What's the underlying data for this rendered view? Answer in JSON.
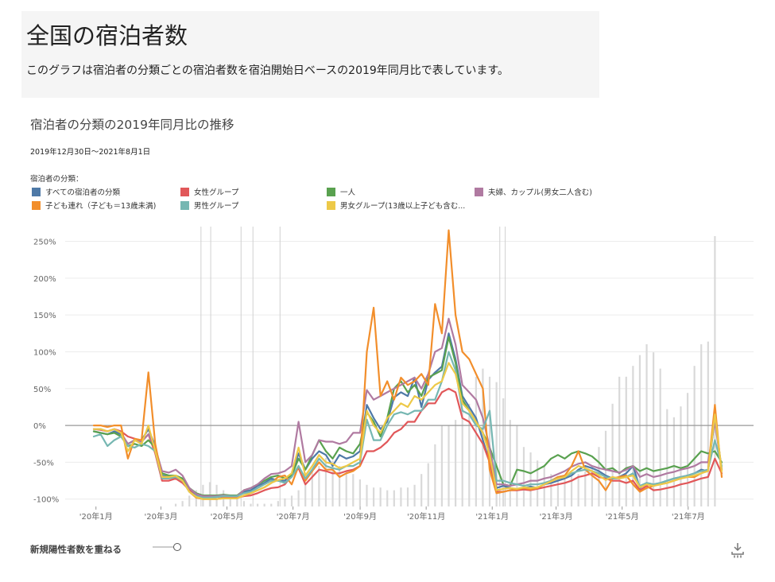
{
  "header": {
    "title": "全国の宿泊者数",
    "description": "このグラフは宿泊者の分類ごとの宿泊者数を宿泊開始日ベースの2019年同月比で表しています。"
  },
  "chart_header": {
    "title": "宿泊者の分類の2019年同月比の推移",
    "date_range": "2019年12月30日～2021年8月1日",
    "legend_title": "宿泊者の分類："
  },
  "legend": [
    {
      "label": "すべての宿泊者の分類",
      "color": "#4e79a7"
    },
    {
      "label": "女性グループ",
      "color": "#e15759"
    },
    {
      "label": "一人",
      "color": "#59a14f"
    },
    {
      "label": "夫婦、カップル(男女二人含む)",
      "color": "#b07aa1"
    },
    {
      "label": "子ども連れ（子ども＝13歳未満)",
      "color": "#f28e2b"
    },
    {
      "label": "男性グループ",
      "color": "#76b7b2"
    },
    {
      "label": "男女グループ(13歳以上子ども含む...",
      "color": "#edc948"
    }
  ],
  "controls": {
    "overlay_label": "新規陽性者数を重ねる",
    "overlay_toggle_on": true,
    "download_icon": "download-icon"
  },
  "chart_data": {
    "type": "line",
    "x_axis": {
      "unit": "week",
      "start": "2019-12-30",
      "end": "2021-08-01",
      "tick_labels": [
        "'20年1月",
        "'20年3月",
        "'20年5月",
        "'20年7月",
        "'20年9月",
        "'20年11月",
        "'21年1月",
        "'21年3月",
        "'21年5月",
        "'21年7月"
      ]
    },
    "y_axis": {
      "ylim": [
        -110,
        270
      ],
      "ticks": [
        -100,
        -50,
        0,
        50,
        100,
        150,
        200,
        250
      ],
      "tick_labels": [
        "-100%",
        "-50%",
        "0%",
        "50%",
        "100%",
        "150%",
        "200%",
        "250%"
      ],
      "zero_line": true
    },
    "overlay": {
      "name": "新規陽性者数",
      "type": "bar",
      "color": "#d9d9d9",
      "note": "relative weekly new cases, background bars (unitless, scale 0-1)",
      "values": [
        0.0,
        0.0,
        0.0,
        0.0,
        0.0,
        0.0,
        0.0,
        0.0,
        0.0,
        0.0,
        0.0,
        0.0,
        0.01,
        0.02,
        0.04,
        0.06,
        0.08,
        0.09,
        0.08,
        0.06,
        0.04,
        0.03,
        0.02,
        0.01,
        0.01,
        0.01,
        0.01,
        0.02,
        0.03,
        0.04,
        0.06,
        0.08,
        0.13,
        0.15,
        0.18,
        0.17,
        0.15,
        0.13,
        0.12,
        0.1,
        0.08,
        0.07,
        0.07,
        0.06,
        0.06,
        0.07,
        0.07,
        0.08,
        0.12,
        0.16,
        0.23,
        0.3,
        0.3,
        0.32,
        0.36,
        0.38,
        0.48,
        0.51,
        0.48,
        0.46,
        0.4,
        0.32,
        0.3,
        0.22,
        0.2,
        0.17,
        0.15,
        0.12,
        0.1,
        0.1,
        0.11,
        0.12,
        0.13,
        0.15,
        0.22,
        0.28,
        0.38,
        0.48,
        0.48,
        0.52,
        0.56,
        0.6,
        0.57,
        0.51,
        0.36,
        0.33,
        0.37,
        0.42,
        0.52,
        0.6,
        0.61,
        1.0
      ]
    },
    "vertical_markers": [
      "2020-04-07",
      "2020-04-16",
      "2020-05-14",
      "2020-05-25",
      "2020-06-19",
      "2021-01-08",
      "2021-01-13"
    ],
    "series": [
      {
        "name": "すべての宿泊者の分類",
        "color": "#4e79a7",
        "values": [
          -8,
          -10,
          -12,
          -8,
          -12,
          -25,
          -20,
          -20,
          -5,
          -28,
          -68,
          -70,
          -68,
          -75,
          -88,
          -95,
          -98,
          -98,
          -97,
          -96,
          -96,
          -96,
          -90,
          -88,
          -82,
          -78,
          -72,
          -75,
          -75,
          -65,
          -38,
          -60,
          -45,
          -35,
          -40,
          -55,
          -40,
          -45,
          -42,
          -35,
          28,
          10,
          -5,
          5,
          38,
          45,
          40,
          65,
          25,
          62,
          72,
          80,
          125,
          90,
          40,
          25,
          10,
          -20,
          -50,
          -85,
          -82,
          -85,
          -87,
          -85,
          -83,
          -85,
          -80,
          -78,
          -75,
          -72,
          -68,
          -60,
          -55,
          -58,
          -62,
          -68,
          -72,
          -70,
          -65,
          -55,
          -85,
          -78,
          -80,
          -78,
          -75,
          -72,
          -70,
          -68,
          -65,
          -60,
          -62,
          10,
          -60
        ]
      },
      {
        "name": "女性グループ",
        "color": "#e15759",
        "values": [
          -5,
          -6,
          -8,
          -5,
          -8,
          -15,
          -18,
          -22,
          -12,
          -38,
          -75,
          -75,
          -72,
          -78,
          -88,
          -97,
          -100,
          -100,
          -100,
          -98,
          -98,
          -98,
          -96,
          -95,
          -92,
          -88,
          -85,
          -84,
          -80,
          -68,
          -58,
          -80,
          -70,
          -60,
          -62,
          -65,
          -65,
          -62,
          -60,
          -55,
          -35,
          -35,
          -30,
          -22,
          -10,
          -5,
          5,
          5,
          20,
          30,
          30,
          45,
          50,
          45,
          10,
          5,
          -10,
          -25,
          -50,
          -90,
          -90,
          -88,
          -88,
          -87,
          -88,
          -86,
          -84,
          -82,
          -80,
          -78,
          -75,
          -70,
          -68,
          -65,
          -70,
          -72,
          -75,
          -75,
          -78,
          -75,
          -88,
          -82,
          -88,
          -87,
          -85,
          -83,
          -80,
          -78,
          -75,
          -72,
          -70,
          -45,
          -65
        ]
      },
      {
        "name": "一人",
        "color": "#59a14f",
        "values": [
          -8,
          -10,
          -12,
          -10,
          -15,
          -28,
          -25,
          -28,
          -20,
          -30,
          -65,
          -68,
          -68,
          -72,
          -85,
          -92,
          -95,
          -95,
          -95,
          -94,
          -95,
          -95,
          -88,
          -85,
          -80,
          -75,
          -70,
          -68,
          -72,
          -68,
          -45,
          -60,
          -40,
          -20,
          -35,
          -45,
          -30,
          -35,
          -38,
          -25,
          18,
          5,
          -15,
          10,
          50,
          60,
          45,
          55,
          40,
          65,
          70,
          75,
          120,
          85,
          35,
          20,
          5,
          -10,
          -30,
          -55,
          -80,
          -82,
          -60,
          -62,
          -65,
          -60,
          -55,
          -45,
          -40,
          -45,
          -38,
          -35,
          -38,
          -42,
          -50,
          -60,
          -58,
          -65,
          -58,
          -55,
          -62,
          -58,
          -62,
          -60,
          -58,
          -55,
          -58,
          -55,
          -45,
          -35,
          -38,
          -35,
          -50
        ]
      },
      {
        "name": "夫婦、カップル(男女二人含む)",
        "color": "#b07aa1",
        "values": [
          -5,
          -5,
          -8,
          -5,
          -10,
          -25,
          -20,
          -22,
          -12,
          -30,
          -62,
          -64,
          -60,
          -68,
          -85,
          -93,
          -96,
          -96,
          -96,
          -95,
          -96,
          -96,
          -88,
          -85,
          -80,
          -72,
          -66,
          -65,
          -62,
          -55,
          5,
          -50,
          -40,
          -20,
          -22,
          -22,
          -25,
          -22,
          -10,
          -10,
          48,
          35,
          40,
          45,
          50,
          55,
          60,
          65,
          50,
          70,
          100,
          105,
          145,
          110,
          55,
          45,
          35,
          10,
          -30,
          -80,
          -80,
          -82,
          -80,
          -78,
          -75,
          -75,
          -72,
          -70,
          -66,
          -62,
          -56,
          -52,
          -50,
          -55,
          -58,
          -60,
          -62,
          -64,
          -60,
          -55,
          -70,
          -66,
          -70,
          -68,
          -65,
          -63,
          -60,
          -58,
          -55,
          -50,
          -50,
          5,
          -60
        ]
      },
      {
        "name": "子ども連れ（子ども＝13歳未満)",
        "color": "#f28e2b",
        "values": [
          0,
          0,
          -2,
          0,
          0,
          -45,
          -18,
          -20,
          72,
          -25,
          -72,
          -72,
          -70,
          -75,
          -90,
          -98,
          -100,
          -100,
          -100,
          -99,
          -99,
          -99,
          -95,
          -92,
          -88,
          -84,
          -78,
          -70,
          -68,
          -80,
          -55,
          -75,
          -62,
          -50,
          -60,
          -60,
          -70,
          -65,
          -62,
          -55,
          100,
          160,
          40,
          60,
          35,
          65,
          55,
          60,
          70,
          55,
          165,
          125,
          265,
          150,
          100,
          90,
          70,
          50,
          -60,
          -92,
          -90,
          -88,
          -87,
          -85,
          -87,
          -85,
          -80,
          -75,
          -70,
          -68,
          -55,
          -35,
          -60,
          -68,
          -75,
          -88,
          -72,
          -70,
          -68,
          -80,
          -90,
          -85,
          -82,
          -80,
          -78,
          -75,
          -72,
          -70,
          -70,
          -65,
          -60,
          28,
          -70
        ]
      },
      {
        "name": "男性グループ",
        "color": "#76b7b2",
        "values": [
          -15,
          -12,
          -28,
          -20,
          -15,
          -28,
          -30,
          -25,
          -28,
          -35,
          -72,
          -72,
          -70,
          -75,
          -90,
          -96,
          -98,
          -98,
          -97,
          -96,
          -96,
          -96,
          -92,
          -90,
          -85,
          -80,
          -75,
          -75,
          -78,
          -70,
          -55,
          -72,
          -60,
          -45,
          -55,
          -58,
          -60,
          -55,
          -55,
          -50,
          8,
          -20,
          -20,
          0,
          15,
          18,
          15,
          20,
          20,
          35,
          35,
          60,
          100,
          75,
          20,
          15,
          0,
          -5,
          20,
          -75,
          -75,
          -78,
          -80,
          -82,
          -80,
          -80,
          -78,
          -75,
          -72,
          -70,
          -65,
          -62,
          -60,
          -62,
          -65,
          -70,
          -72,
          -72,
          -70,
          -65,
          -82,
          -78,
          -80,
          -78,
          -75,
          -72,
          -70,
          -68,
          -65,
          -62,
          -60,
          -20,
          -55
        ]
      },
      {
        "name": "男女グループ(13歳以上子ども含む...",
        "color": "#edc948",
        "values": [
          -5,
          -5,
          -8,
          -5,
          -10,
          -35,
          -20,
          -25,
          0,
          -35,
          -70,
          -70,
          -68,
          -75,
          -90,
          -97,
          -100,
          -100,
          -100,
          -99,
          -99,
          -99,
          -95,
          -92,
          -88,
          -84,
          -78,
          -74,
          -72,
          -65,
          -30,
          -68,
          -55,
          -40,
          -50,
          -52,
          -58,
          -55,
          -50,
          -45,
          20,
          0,
          -10,
          10,
          20,
          30,
          25,
          40,
          35,
          45,
          55,
          60,
          85,
          70,
          30,
          20,
          5,
          -10,
          -40,
          -88,
          -86,
          -85,
          -86,
          -84,
          -85,
          -84,
          -80,
          -76,
          -72,
          -70,
          -62,
          -55,
          -58,
          -62,
          -68,
          -74,
          -70,
          -72,
          -70,
          -68,
          -84,
          -80,
          -82,
          -80,
          -78,
          -75,
          -72,
          -70,
          -68,
          -65,
          -62,
          15,
          -62
        ]
      }
    ]
  }
}
